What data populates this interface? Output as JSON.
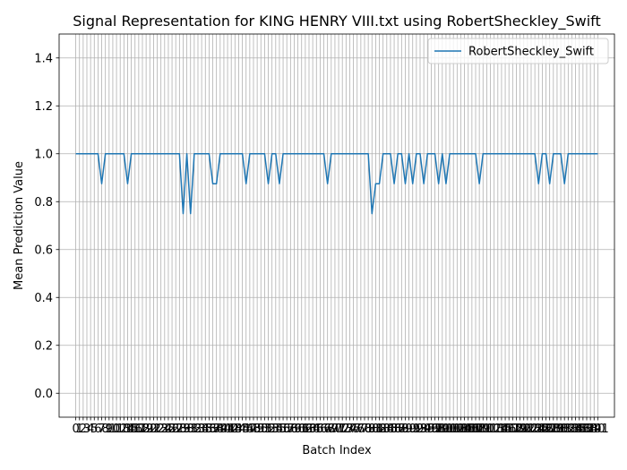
{
  "chart_data": {
    "type": "line",
    "title": "Signal Representation for KING HENRY VIII.txt using RobertSheckley_Swift",
    "xlabel": "Batch Index",
    "ylabel": "Mean Prediction Value",
    "xlim": [
      -4.5,
      145.5
    ],
    "ylim": [
      -0.1,
      1.5
    ],
    "yticks": [
      0.0,
      0.2,
      0.4,
      0.6,
      0.8,
      1.0,
      1.2,
      1.4
    ],
    "xticks_count": 142,
    "grid": true,
    "legend_position": "top-right",
    "series": [
      {
        "name": "RobertSheckley_Swift",
        "color": "#1f77b4",
        "values": [
          1,
          1,
          1,
          1,
          1,
          1,
          1,
          0.875,
          1,
          1,
          1,
          1,
          1,
          1,
          0.875,
          1,
          1,
          1,
          1,
          1,
          1,
          1,
          1,
          1,
          1,
          1,
          1,
          1,
          1,
          0.75,
          1,
          0.75,
          1,
          1,
          1,
          1,
          1,
          0.875,
          0.875,
          1,
          1,
          1,
          1,
          1,
          1,
          1,
          0.875,
          1,
          1,
          1,
          1,
          1,
          0.875,
          1,
          1,
          0.875,
          1,
          1,
          1,
          1,
          1,
          1,
          1,
          1,
          1,
          1,
          1,
          1,
          0.875,
          1,
          1,
          1,
          1,
          1,
          1,
          1,
          1,
          1,
          1,
          1,
          0.75,
          0.875,
          0.875,
          1,
          1,
          1,
          0.875,
          1,
          1,
          0.875,
          1,
          0.875,
          1,
          1,
          0.875,
          1,
          1,
          1,
          0.875,
          1,
          0.875,
          1,
          1,
          1,
          1,
          1,
          1,
          1,
          1,
          0.875,
          1,
          1,
          1,
          1,
          1,
          1,
          1,
          1,
          1,
          1,
          1,
          1,
          1,
          1,
          1,
          0.875,
          1,
          1,
          0.875,
          1,
          1,
          1,
          0.875,
          1,
          1,
          1,
          1,
          1,
          1,
          1,
          1,
          1
        ]
      }
    ]
  }
}
